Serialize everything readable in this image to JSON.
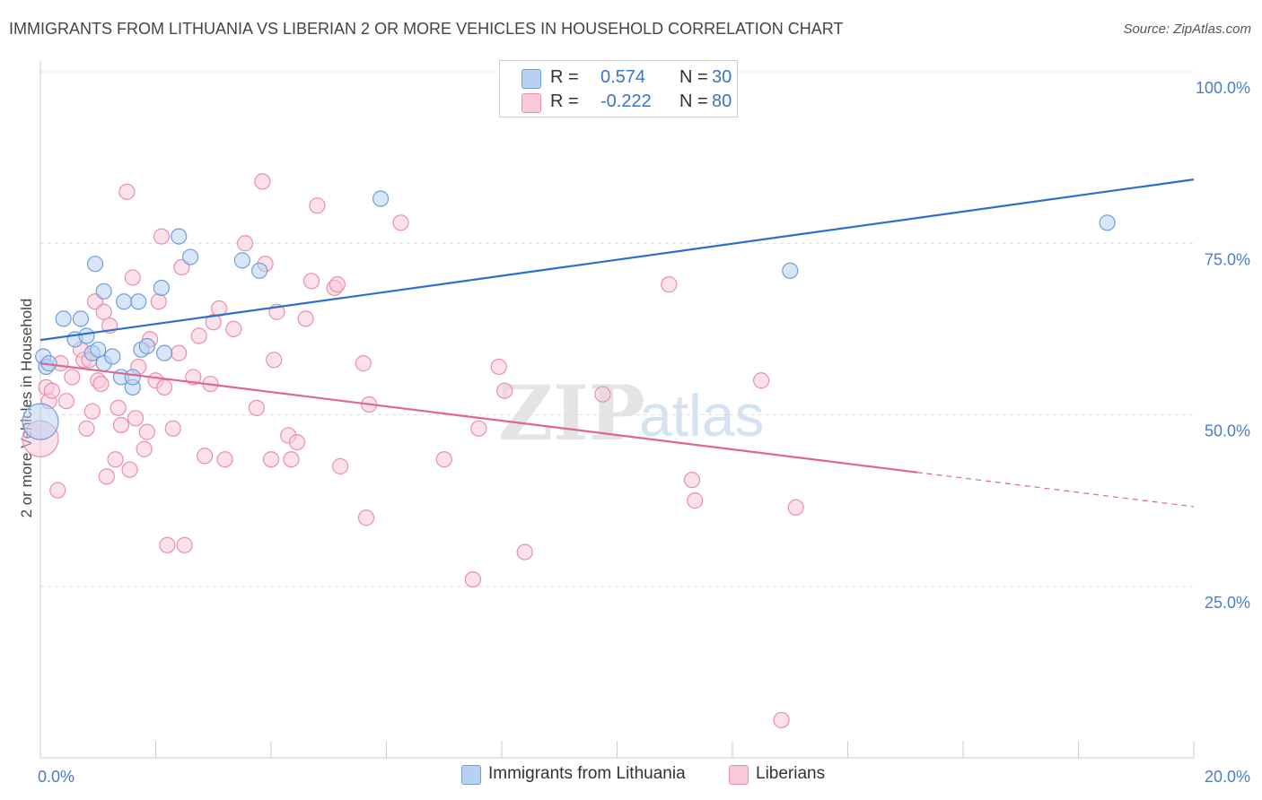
{
  "header": {
    "title": "IMMIGRANTS FROM LITHUANIA VS LIBERIAN 2 OR MORE VEHICLES IN HOUSEHOLD CORRELATION CHART",
    "source": "Source: ZipAtlas.com"
  },
  "watermark": {
    "zip": "ZIP",
    "atlas": "atlas"
  },
  "legend": {
    "r_label": "R =",
    "n_label": "N =",
    "series": [
      {
        "r": "0.574",
        "n": "30"
      },
      {
        "r": "-0.222",
        "n": "80"
      }
    ]
  },
  "bottom_legend": {
    "items": [
      {
        "label": "Immigrants from Lithuania"
      },
      {
        "label": "Liberians"
      }
    ]
  },
  "colors": {
    "blue_fill": "#b8d1f3",
    "blue_stroke": "#6f9fdb",
    "blue_line": "#2c6fcc",
    "pink_fill": "#f9c9d8",
    "pink_stroke": "#e890ad",
    "pink_line": "#e0668f",
    "tick_label": "#4a7cc7",
    "grid": "#dddddd"
  },
  "chart_data": {
    "type": "scatter",
    "title": "IMMIGRANTS FROM LITHUANIA VS LIBERIAN 2 OR MORE VEHICLES IN HOUSEHOLD CORRELATION CHART",
    "xlabel": "",
    "ylabel": "2 or more Vehicles in Household",
    "xlim": [
      0,
      20
    ],
    "ylim": [
      0,
      100
    ],
    "x_tick_labels": [
      "0.0%",
      "20.0%"
    ],
    "y_ticks": [
      25,
      50,
      75,
      100
    ],
    "y_tick_labels": [
      "25.0%",
      "50.0%",
      "75.0%",
      "100.0%"
    ],
    "grid": true,
    "legend_position": "top-center",
    "series": [
      {
        "name": "Immigrants from Lithuania",
        "color": "#6f9fdb",
        "r": 0.574,
        "n": 30,
        "trend": {
          "x": [
            0,
            20
          ],
          "y": [
            60.9,
            84.3
          ],
          "solid_until": 20
        },
        "points": [
          [
            0.0,
            49.0,
            2
          ],
          [
            0.05,
            58.5,
            1
          ],
          [
            0.1,
            57.0,
            1
          ],
          [
            0.15,
            57.5,
            1
          ],
          [
            0.4,
            64.0,
            1
          ],
          [
            0.6,
            61.0,
            1
          ],
          [
            0.7,
            64.0,
            1
          ],
          [
            0.8,
            61.5,
            1
          ],
          [
            0.9,
            59.0,
            1
          ],
          [
            1.0,
            59.5,
            1
          ],
          [
            0.95,
            72.0,
            1
          ],
          [
            1.1,
            68.0,
            1
          ],
          [
            1.1,
            57.5,
            1
          ],
          [
            1.25,
            58.5,
            1
          ],
          [
            1.4,
            55.5,
            1
          ],
          [
            1.45,
            66.5,
            1
          ],
          [
            1.6,
            54.0,
            1
          ],
          [
            1.6,
            55.5,
            1
          ],
          [
            1.7,
            66.5,
            1
          ],
          [
            1.75,
            59.5,
            1
          ],
          [
            1.85,
            60.0,
            1
          ],
          [
            2.1,
            68.5,
            1
          ],
          [
            2.15,
            59.0,
            1
          ],
          [
            2.4,
            76.0,
            1
          ],
          [
            2.6,
            73.0,
            1
          ],
          [
            3.5,
            72.5,
            1
          ],
          [
            3.8,
            71.0,
            1
          ],
          [
            5.9,
            81.5,
            1
          ],
          [
            13.0,
            71.0,
            1
          ],
          [
            18.5,
            78.0,
            1
          ]
        ]
      },
      {
        "name": "Liberians",
        "color": "#e890ad",
        "r": -0.222,
        "n": 80,
        "trend": {
          "x": [
            0,
            20
          ],
          "y": [
            57.5,
            36.6
          ],
          "solid_until": 15.2
        },
        "points": [
          [
            0.0,
            46.5,
            2
          ],
          [
            0.1,
            54.0,
            1
          ],
          [
            0.15,
            52.0,
            1
          ],
          [
            0.2,
            53.5,
            1
          ],
          [
            0.3,
            39.0,
            1
          ],
          [
            0.35,
            57.5,
            1
          ],
          [
            0.45,
            52.0,
            1
          ],
          [
            0.55,
            55.5,
            1
          ],
          [
            0.7,
            59.5,
            1
          ],
          [
            0.75,
            58.0,
            1
          ],
          [
            0.8,
            48.0,
            1
          ],
          [
            0.85,
            58.0,
            1
          ],
          [
            0.9,
            50.5,
            1
          ],
          [
            0.95,
            66.5,
            1
          ],
          [
            1.0,
            55.0,
            1
          ],
          [
            1.05,
            54.5,
            1
          ],
          [
            1.1,
            65.0,
            1
          ],
          [
            1.15,
            41.0,
            1
          ],
          [
            1.2,
            63.0,
            1
          ],
          [
            1.3,
            43.5,
            1
          ],
          [
            1.35,
            51.0,
            1
          ],
          [
            1.4,
            48.5,
            1
          ],
          [
            1.5,
            82.5,
            1
          ],
          [
            1.55,
            42.0,
            1
          ],
          [
            1.6,
            70.0,
            1
          ],
          [
            1.65,
            49.5,
            1
          ],
          [
            1.7,
            57.0,
            1
          ],
          [
            1.8,
            45.0,
            1
          ],
          [
            1.85,
            47.5,
            1
          ],
          [
            1.9,
            61.0,
            1
          ],
          [
            2.0,
            55.0,
            1
          ],
          [
            2.05,
            66.5,
            1
          ],
          [
            2.1,
            76.0,
            1
          ],
          [
            2.15,
            54.0,
            1
          ],
          [
            2.2,
            31.0,
            1
          ],
          [
            2.3,
            48.0,
            1
          ],
          [
            2.4,
            59.0,
            1
          ],
          [
            2.45,
            71.5,
            1
          ],
          [
            2.5,
            31.0,
            1
          ],
          [
            2.65,
            55.5,
            1
          ],
          [
            2.75,
            61.5,
            1
          ],
          [
            2.85,
            44.0,
            1
          ],
          [
            2.95,
            54.5,
            1
          ],
          [
            3.0,
            63.5,
            1
          ],
          [
            3.1,
            65.5,
            1
          ],
          [
            3.2,
            43.5,
            1
          ],
          [
            3.35,
            62.5,
            1
          ],
          [
            3.55,
            75.0,
            1
          ],
          [
            3.75,
            51.0,
            1
          ],
          [
            3.85,
            84.0,
            1
          ],
          [
            3.9,
            72.0,
            1
          ],
          [
            4.0,
            43.5,
            1
          ],
          [
            4.05,
            58.0,
            1
          ],
          [
            4.1,
            65.0,
            1
          ],
          [
            4.3,
            47.0,
            1
          ],
          [
            4.35,
            43.5,
            1
          ],
          [
            4.45,
            46.0,
            1
          ],
          [
            4.6,
            64.0,
            1
          ],
          [
            4.7,
            69.5,
            1
          ],
          [
            4.8,
            80.5,
            1
          ],
          [
            5.1,
            68.5,
            1
          ],
          [
            5.15,
            69.0,
            1
          ],
          [
            5.2,
            42.5,
            1
          ],
          [
            5.6,
            57.5,
            1
          ],
          [
            5.65,
            35.0,
            1
          ],
          [
            5.7,
            51.5,
            1
          ],
          [
            6.25,
            78.0,
            1
          ],
          [
            7.0,
            43.5,
            1
          ],
          [
            7.5,
            26.0,
            1
          ],
          [
            7.6,
            48.0,
            1
          ],
          [
            7.95,
            57.0,
            1
          ],
          [
            8.05,
            53.5,
            1
          ],
          [
            8.4,
            30.0,
            1
          ],
          [
            9.75,
            53.0,
            1
          ],
          [
            10.9,
            69.0,
            1
          ],
          [
            11.3,
            40.5,
            1
          ],
          [
            11.35,
            37.5,
            1
          ],
          [
            12.5,
            55.0,
            1
          ],
          [
            12.85,
            5.5,
            1
          ],
          [
            13.1,
            36.5,
            1
          ]
        ]
      }
    ]
  }
}
